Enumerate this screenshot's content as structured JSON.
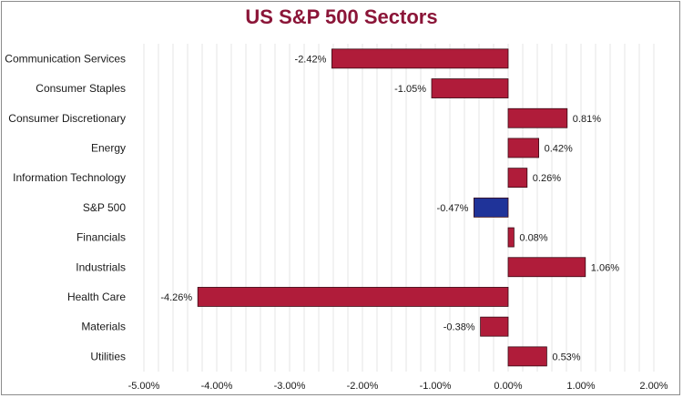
{
  "chart_data": {
    "type": "bar",
    "orientation": "horizontal",
    "title": "US S&P 500 Sectors",
    "categories": [
      "Communication Services",
      "Consumer Staples",
      "Consumer Discretionary",
      "Energy",
      "Information Technology",
      "S&P 500",
      "Financials",
      "Industrials",
      "Health Care",
      "Materials",
      "Utilities"
    ],
    "values": [
      -2.42,
      -1.05,
      0.81,
      0.42,
      0.26,
      -0.47,
      0.08,
      1.06,
      -4.26,
      -0.38,
      0.53
    ],
    "value_labels": [
      "-2.42%",
      "-1.05%",
      "0.81%",
      "0.42%",
      "0.26%",
      "-0.47%",
      "0.08%",
      "1.06%",
      "-4.26%",
      "-0.38%",
      "0.53%"
    ],
    "xlim": [
      -5,
      2
    ],
    "x_ticks": [
      -5,
      -4,
      -3,
      -2,
      -1,
      0,
      1,
      2
    ],
    "x_tick_labels": [
      "-5.00%",
      "-4.00%",
      "-3.00%",
      "-2.00%",
      "-1.00%",
      "0.00%",
      "1.00%",
      "2.00%"
    ],
    "xlabel": "",
    "ylabel": "",
    "grid": "vertical",
    "legend": "none",
    "colors": {
      "sector_bar": "#b01c3a",
      "index_bar": "#1f3399",
      "bar_outline": "#3a0a14",
      "title": "#8b1538",
      "gridline": "#e6e6e6"
    },
    "highlight_category": "S&P 500"
  }
}
